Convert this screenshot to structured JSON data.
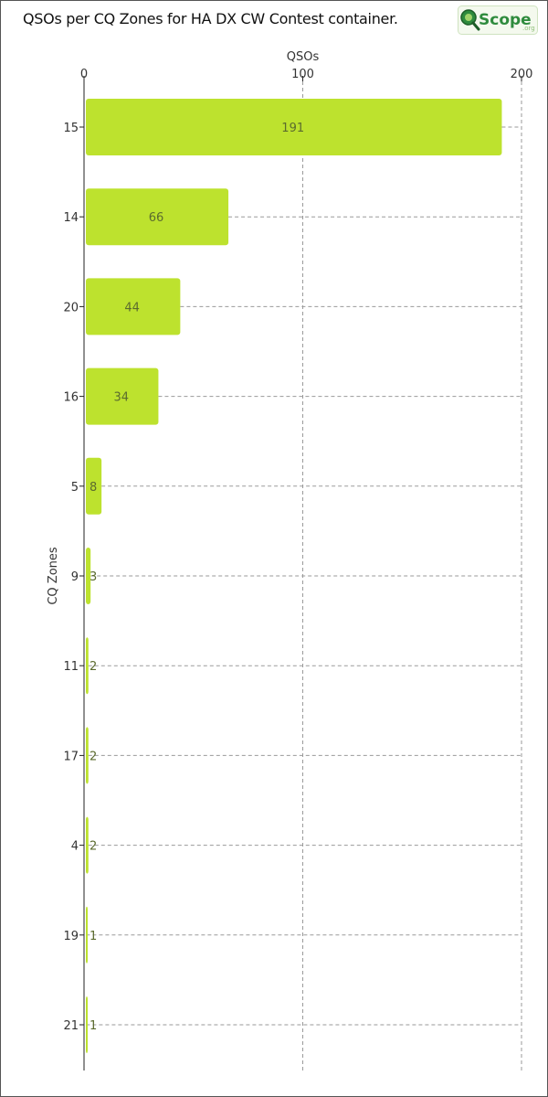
{
  "title": "QSOs per CQ Zones for HA DX CW Contest container.",
  "logo": {
    "text": "Scope",
    "suffix": ".org",
    "icon": "magnifier-q-icon"
  },
  "colors": {
    "bar": "#bde22e",
    "label": "#5b6b2e",
    "axis": "#222222",
    "grid": "#9a9a9a",
    "tick_text": "#333333",
    "logo_green": "#2e8b3d"
  },
  "chart_data": {
    "type": "bar",
    "orientation": "horizontal",
    "title": "QSOs per CQ Zones for HA DX CW Contest container.",
    "xlabel": "QSOs",
    "ylabel": "CQ Zones",
    "x_axis_position": "top",
    "xlim": [
      0,
      200
    ],
    "xticks": [
      0,
      100,
      200
    ],
    "grid": true,
    "categories": [
      "15",
      "14",
      "20",
      "16",
      "5",
      "9",
      "11",
      "17",
      "4",
      "19",
      "21"
    ],
    "values": [
      191,
      66,
      44,
      34,
      8,
      3,
      2,
      2,
      2,
      1,
      1
    ]
  }
}
